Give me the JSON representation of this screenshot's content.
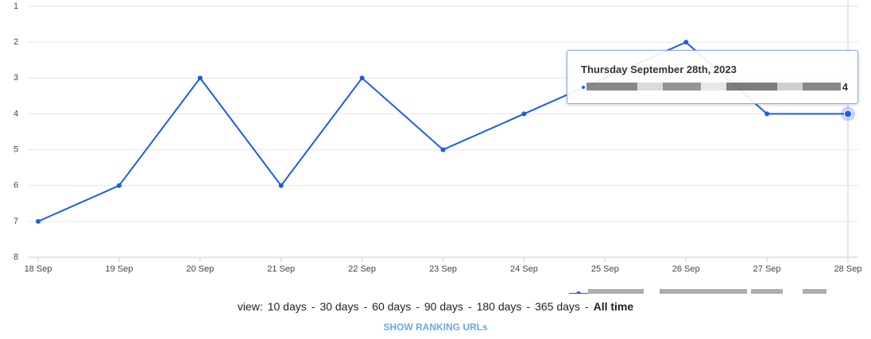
{
  "chart_data": {
    "type": "line",
    "categories": [
      "18 Sep",
      "19 Sep",
      "20 Sep",
      "21 Sep",
      "22 Sep",
      "23 Sep",
      "24 Sep",
      "25 Sep",
      "26 Sep",
      "27 Sep",
      "28 Sep"
    ],
    "series": [
      {
        "color": "#1a5cf0",
        "values": [
          7,
          6,
          3,
          6,
          3,
          5,
          4,
          3,
          2,
          4,
          4
        ]
      }
    ],
    "ylim": [
      1,
      8
    ],
    "yticks": [
      1,
      2,
      3,
      4,
      5,
      6,
      7,
      8
    ],
    "y_inverted": true,
    "grid": true,
    "tooltip": {
      "title": "Thursday September 28th, 2023",
      "value": 4,
      "index": 10
    }
  },
  "view": {
    "label": "view:",
    "separator": "-",
    "options": [
      "10 days",
      "30 days",
      "60 days",
      "90 days",
      "180 days",
      "365 days",
      "All time"
    ]
  },
  "button": "SHOW RANKING URLs"
}
